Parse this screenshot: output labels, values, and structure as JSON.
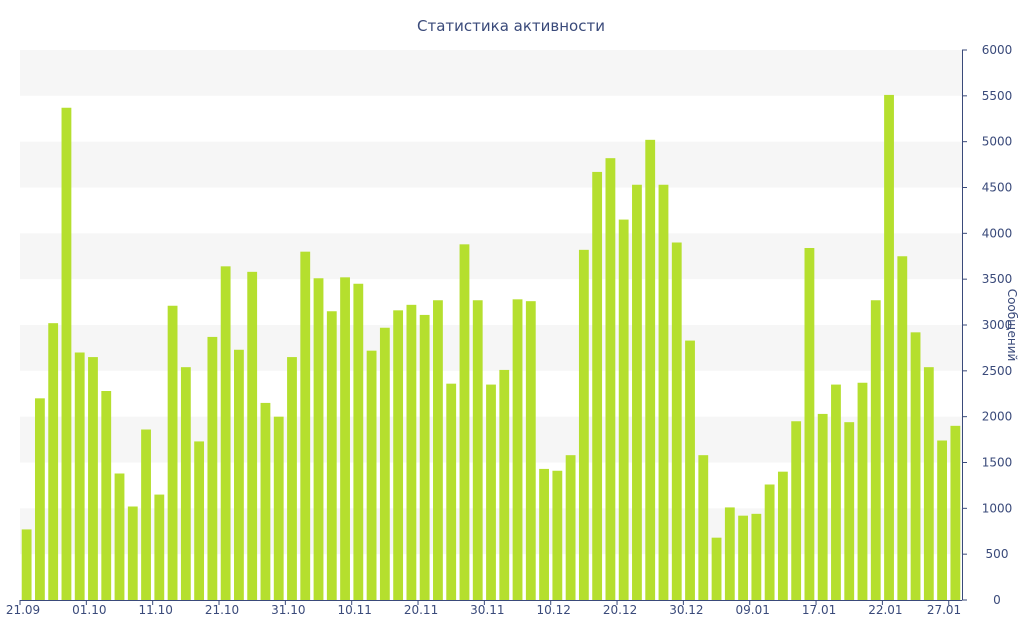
{
  "chart_data": {
    "type": "bar",
    "title": "Статистика активности",
    "ylabel": "Сообщений",
    "xlabel": "",
    "ylim": [
      0,
      6000
    ],
    "y_ticks": [
      0,
      500,
      1000,
      1500,
      2000,
      2500,
      3000,
      3500,
      4000,
      4500,
      5000,
      5500,
      6000
    ],
    "y_axis_side": "right",
    "grid": "alternating horizontal bands",
    "bar_color": "#b5df2e",
    "x_tick_labels": [
      {
        "index": 0,
        "label": "21.09"
      },
      {
        "index": 5,
        "label": "01.10"
      },
      {
        "index": 10,
        "label": "11.10"
      },
      {
        "index": 15,
        "label": "21.10"
      },
      {
        "index": 20,
        "label": "31.10"
      },
      {
        "index": 25,
        "label": "10.11"
      },
      {
        "index": 30,
        "label": "20.11"
      },
      {
        "index": 35,
        "label": "30.11"
      },
      {
        "index": 40,
        "label": "10.12"
      },
      {
        "index": 45,
        "label": "20.12"
      },
      {
        "index": 50,
        "label": "30.12"
      },
      {
        "index": 55,
        "label": "09.01"
      },
      {
        "index": 60,
        "label": "17.01"
      },
      {
        "index": 65,
        "label": "22.01"
      },
      {
        "index": 70,
        "label": "27.01"
      }
    ],
    "values": [
      770,
      2200,
      3020,
      5370,
      2700,
      2650,
      2280,
      1380,
      1020,
      1860,
      1150,
      3210,
      2540,
      1730,
      2870,
      3640,
      2730,
      3580,
      2150,
      2000,
      2650,
      3800,
      3510,
      3150,
      3520,
      3450,
      2720,
      2970,
      3160,
      3220,
      3110,
      3270,
      2360,
      3880,
      3270,
      2350,
      2510,
      3280,
      3260,
      1430,
      1410,
      1580,
      3820,
      4670,
      4820,
      4150,
      4530,
      5020,
      4530,
      3900,
      2830,
      1580,
      680,
      1010,
      920,
      940,
      1260,
      1400,
      1950,
      3840,
      2030,
      2350,
      1940,
      2370,
      3270,
      5510,
      3750,
      2920,
      2540,
      1740,
      1900
    ]
  }
}
